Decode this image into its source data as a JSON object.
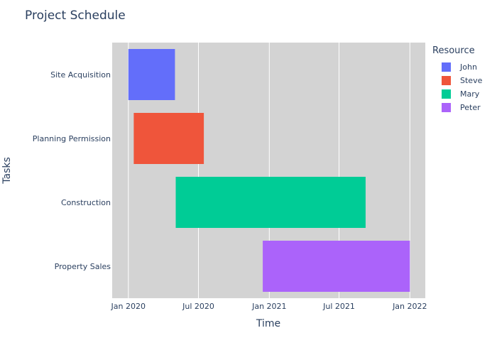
{
  "chart_data": {
    "type": "gantt",
    "title": "Project Schedule",
    "xlabel": "Time",
    "ylabel": "Tasks",
    "x_axis_type": "date",
    "xlim": [
      "2019-11-20",
      "2022-02-10"
    ],
    "x_ticks": [
      "Jan 2020",
      "Jul 2020",
      "Jan 2021",
      "Jul 2021",
      "Jan 2022"
    ],
    "tasks": [
      "Site Acquisition",
      "Planning Permission",
      "Construction",
      "Property Sales"
    ],
    "series": [
      {
        "name": "John",
        "task": "Site Acquisition",
        "start": "2020-01-01",
        "end": "2020-05-01",
        "color": "#636efa"
      },
      {
        "name": "Steve",
        "task": "Planning Permission",
        "start": "2020-01-15",
        "end": "2020-07-15",
        "color": "#ef553b"
      },
      {
        "name": "Mary",
        "task": "Construction",
        "start": "2020-05-03",
        "end": "2021-09-08",
        "color": "#00cc96"
      },
      {
        "name": "Peter",
        "task": "Property Sales",
        "start": "2020-12-15",
        "end": "2022-01-01",
        "color": "#ab63fa"
      }
    ],
    "legend": {
      "title": "Resource",
      "position": "right",
      "items": [
        "John",
        "Steve",
        "Mary",
        "Peter"
      ]
    },
    "grid": true,
    "plot_bgcolor": "#d3d3d3"
  }
}
